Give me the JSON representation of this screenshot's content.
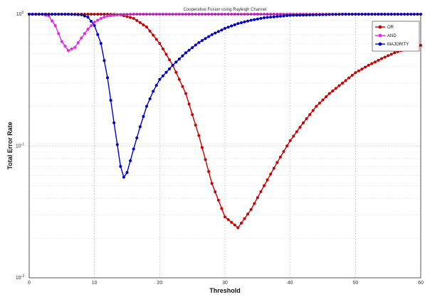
{
  "chart_data": {
    "type": "line",
    "title": "Cooperative Fusion using Rayleigh Channel",
    "xlabel": "Threshold",
    "ylabel": "Total Error Rate",
    "x_scale": "linear",
    "y_scale": "log",
    "xlim": [
      0,
      60
    ],
    "ylim": [
      0.01,
      1
    ],
    "x_ticks": [
      "0",
      "10",
      "20",
      "30",
      "40",
      "50",
      "60"
    ],
    "y_ticks": [
      {
        "value": 1,
        "base": "10",
        "exp": "0"
      },
      {
        "value": 0.1,
        "base": "10",
        "exp": "-1"
      },
      {
        "value": 0.01,
        "base": "10",
        "exp": "-2"
      }
    ],
    "grid": true,
    "legend_position": "top-right",
    "series": [
      {
        "name": "OR",
        "color": "#cc0000",
        "marker": "circle",
        "x": [
          0,
          2,
          4,
          6,
          8,
          10,
          12,
          14,
          16,
          18,
          20,
          22,
          24,
          26,
          28,
          30,
          32,
          34,
          36,
          38,
          40,
          42,
          44,
          46,
          48,
          50,
          52,
          54,
          56,
          58,
          60
        ],
        "y": [
          1,
          1,
          1,
          1,
          1,
          1,
          1,
          0.99,
          0.93,
          0.8,
          0.6,
          0.41,
          0.25,
          0.12,
          0.052,
          0.029,
          0.024,
          0.033,
          0.05,
          0.075,
          0.11,
          0.15,
          0.2,
          0.25,
          0.3,
          0.36,
          0.41,
          0.46,
          0.51,
          0.55,
          0.58
        ]
      },
      {
        "name": "AND",
        "color": "#ee22ee",
        "marker": "circle",
        "x": [
          0,
          2,
          3,
          4,
          5,
          6,
          7,
          8,
          9,
          10,
          11,
          12,
          14,
          16,
          18,
          20,
          30,
          40,
          50,
          60
        ],
        "y": [
          1,
          1,
          0.97,
          0.82,
          0.62,
          0.53,
          0.56,
          0.66,
          0.77,
          0.87,
          0.93,
          0.97,
          0.995,
          1,
          1,
          1,
          1,
          1,
          1,
          1
        ]
      },
      {
        "name": "MAJORITY",
        "color": "#0000cc",
        "marker": "circle",
        "x": [
          0,
          2,
          4,
          6,
          8,
          9,
          10,
          11,
          12,
          13,
          14,
          14.5,
          15,
          16,
          17,
          18,
          19,
          20,
          22,
          24,
          26,
          28,
          30,
          32,
          34,
          36,
          38,
          40,
          44,
          48,
          52,
          56,
          60
        ],
        "y": [
          1,
          1,
          1,
          1,
          0.99,
          0.95,
          0.82,
          0.6,
          0.33,
          0.15,
          0.07,
          0.058,
          0.063,
          0.095,
          0.14,
          0.2,
          0.26,
          0.32,
          0.41,
          0.51,
          0.61,
          0.7,
          0.78,
          0.85,
          0.9,
          0.94,
          0.96,
          0.98,
          0.99,
          1,
          1,
          1,
          1
        ]
      }
    ]
  }
}
